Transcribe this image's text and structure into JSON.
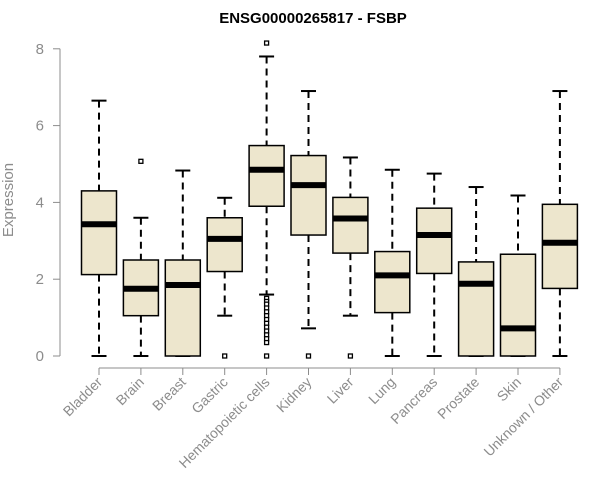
{
  "chart_data": {
    "type": "boxplot",
    "title": "ENSG00000265817 - FSBP",
    "ylabel": "Expression",
    "xlabel": "",
    "ylim": [
      0,
      8.2
    ],
    "yticks": [
      0,
      2,
      4,
      6,
      8
    ],
    "grid": false,
    "legend": "none",
    "colors": {
      "box_fill": "#ede6cd",
      "stroke": "#000000",
      "axis_text": "#8c8c8c",
      "axis_line": "#8c8c8c"
    },
    "categories": [
      "Bladder",
      "Brain",
      "Breast",
      "Gastric",
      "Hematopoietic cells",
      "Kidney",
      "Liver",
      "Lung",
      "Pancreas",
      "Prostate",
      "Skin",
      "Unknown / Other"
    ],
    "boxes": [
      {
        "min": 0,
        "q1": 2.12,
        "median": 3.43,
        "q3": 4.3,
        "max": 6.65,
        "outliers": []
      },
      {
        "min": 0,
        "q1": 1.05,
        "median": 1.75,
        "q3": 2.5,
        "max": 3.6,
        "outliers": [
          5.07
        ]
      },
      {
        "min": 0,
        "q1": 0,
        "median": 1.85,
        "q3": 2.5,
        "max": 4.83,
        "outliers": []
      },
      {
        "min": 1.05,
        "q1": 2.2,
        "median": 3.05,
        "q3": 3.6,
        "max": 4.12,
        "outliers": [
          0
        ]
      },
      {
        "min": 1.6,
        "q1": 3.9,
        "median": 4.85,
        "q3": 5.48,
        "max": 7.8,
        "outliers": [
          8.15,
          1.5,
          1.42,
          1.35,
          1.25,
          1.15,
          1.05,
          0.95,
          0.85,
          0.75,
          0.65,
          0.55,
          0.45,
          0.35,
          0.0
        ]
      },
      {
        "min": 0.72,
        "q1": 3.15,
        "median": 4.45,
        "q3": 5.22,
        "max": 6.9,
        "outliers": [
          0
        ]
      },
      {
        "min": 1.05,
        "q1": 2.68,
        "median": 3.58,
        "q3": 4.13,
        "max": 5.17,
        "outliers": [
          0
        ]
      },
      {
        "min": 0,
        "q1": 1.13,
        "median": 2.1,
        "q3": 2.72,
        "max": 4.85,
        "outliers": []
      },
      {
        "min": 0,
        "q1": 2.15,
        "median": 3.15,
        "q3": 3.85,
        "max": 4.75,
        "outliers": []
      },
      {
        "min": 0,
        "q1": 0,
        "median": 1.88,
        "q3": 2.45,
        "max": 4.4,
        "outliers": []
      },
      {
        "min": 0,
        "q1": 0,
        "median": 0.72,
        "q3": 2.65,
        "max": 4.18,
        "outliers": []
      },
      {
        "min": 0,
        "q1": 1.76,
        "median": 2.95,
        "q3": 3.95,
        "max": 6.9,
        "outliers": []
      }
    ]
  }
}
